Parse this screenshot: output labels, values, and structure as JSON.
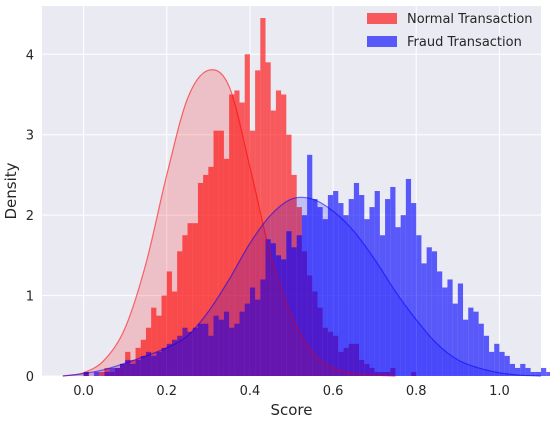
{
  "chart_data": {
    "type": "bar",
    "subtype": "histogram-with-kde",
    "title": "",
    "xlabel": "Score",
    "ylabel": "Density",
    "xlim": [
      -0.1,
      1.1
    ],
    "ylim": [
      0,
      4.6
    ],
    "xticks": [
      "0.0",
      "0.2",
      "0.4",
      "0.6",
      "0.8",
      "1.0"
    ],
    "xtick_values": [
      0,
      0.2,
      0.4,
      0.6,
      0.8,
      1.0
    ],
    "yticks": [
      "0",
      "1",
      "2",
      "3",
      "4"
    ],
    "ytick_values": [
      0,
      1,
      2,
      3,
      4
    ],
    "grid": true,
    "legend_position": "top-right",
    "bin_width": 0.0125,
    "series": [
      {
        "name": "Normal Transaction",
        "color": "#ff0000",
        "bin_start": 0.0,
        "values": [
          0.05,
          0.0,
          0.0,
          0.05,
          0.1,
          0.05,
          0.1,
          0.15,
          0.3,
          0.2,
          0.35,
          0.45,
          0.6,
          0.85,
          0.75,
          1.0,
          1.3,
          1.05,
          1.55,
          1.75,
          1.9,
          1.9,
          2.4,
          2.5,
          2.6,
          3.05,
          3.05,
          2.7,
          3.5,
          3.55,
          3.4,
          4.0,
          3.05,
          3.8,
          4.45,
          3.9,
          3.3,
          3.55,
          3.5,
          3.0,
          2.5,
          2.1,
          1.55,
          1.25,
          1.05,
          0.85,
          0.6,
          0.55,
          0.5,
          0.3,
          0.35,
          0.4,
          0.4,
          0.2,
          0.15,
          0.1,
          0.05,
          0.05,
          0.05,
          0.1,
          0.0,
          0.0,
          0.0,
          0.05
        ],
        "kde_x": [
          -0.05,
          0.0,
          0.05,
          0.1,
          0.15,
          0.2,
          0.25,
          0.3,
          0.35,
          0.4,
          0.45,
          0.5,
          0.55,
          0.6,
          0.65,
          0.7,
          0.75
        ],
        "kde_y": [
          0.0,
          0.04,
          0.2,
          0.6,
          1.4,
          2.5,
          3.45,
          3.8,
          3.6,
          2.6,
          1.5,
          0.75,
          0.3,
          0.1,
          0.03,
          0.01,
          0.0
        ]
      },
      {
        "name": "Fraud Transaction",
        "color": "#0000ff",
        "bin_start": 0.0,
        "values": [
          0.05,
          0.0,
          0.05,
          0.0,
          0.05,
          0.1,
          0.1,
          0.15,
          0.2,
          0.15,
          0.2,
          0.25,
          0.3,
          0.25,
          0.3,
          0.35,
          0.4,
          0.45,
          0.5,
          0.6,
          0.55,
          0.6,
          0.65,
          0.65,
          0.5,
          0.75,
          0.7,
          0.8,
          0.6,
          0.65,
          0.8,
          0.9,
          1.1,
          0.95,
          1.2,
          1.7,
          1.65,
          1.5,
          1.45,
          1.8,
          1.6,
          1.75,
          2.0,
          2.75,
          2.2,
          2.1,
          1.95,
          2.25,
          2.3,
          2.15,
          2.0,
          2.2,
          2.4,
          2.25,
          1.95,
          2.1,
          2.3,
          1.75,
          2.2,
          2.35,
          1.85,
          2.0,
          2.45,
          2.15,
          1.75,
          1.4,
          1.6,
          1.55,
          1.3,
          1.1,
          1.2,
          0.9,
          1.15,
          0.7,
          0.85,
          0.8,
          0.65,
          0.5,
          0.3,
          0.4,
          0.3,
          0.25,
          0.15,
          0.1,
          0.15,
          0.1,
          0.05,
          0.05,
          0.1,
          0.05,
          0.05,
          0.1,
          0.0,
          0.05,
          0.05,
          0.0,
          0.05
        ],
        "kde_x": [
          -0.05,
          0.0,
          0.05,
          0.1,
          0.15,
          0.2,
          0.25,
          0.3,
          0.35,
          0.4,
          0.45,
          0.5,
          0.55,
          0.6,
          0.65,
          0.7,
          0.75,
          0.8,
          0.85,
          0.9,
          0.95,
          1.0,
          1.05,
          1.1
        ],
        "kde_y": [
          0.0,
          0.03,
          0.08,
          0.16,
          0.25,
          0.35,
          0.5,
          0.8,
          1.2,
          1.65,
          2.0,
          2.2,
          2.2,
          2.05,
          1.8,
          1.45,
          1.05,
          0.7,
          0.4,
          0.2,
          0.1,
          0.04,
          0.01,
          0.0
        ]
      }
    ]
  }
}
